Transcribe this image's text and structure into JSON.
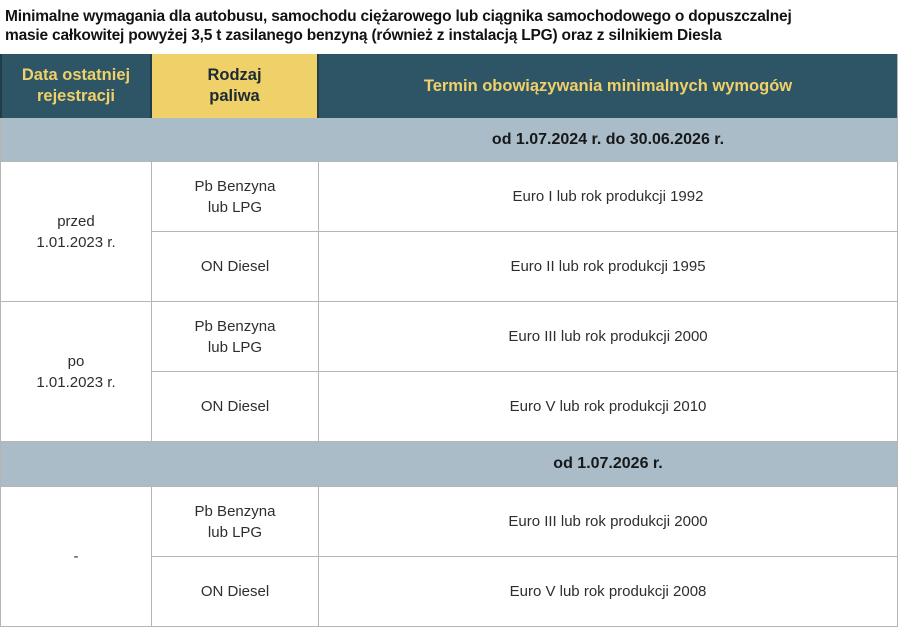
{
  "title": "Minimalne wymagania dla autobusu, samochodu ciężarowego lub ciągnika samochodowego o dopuszczalnej\nmasie całkowitej powyżej 3,5 t zasilanego benzyną (również z instalacją LPG) oraz z silnikiem Diesla",
  "colors": {
    "teal": "#2E5566",
    "yellow": "#F0D069",
    "yellow-text": "#1C2B33",
    "band": "#A9BCC7",
    "border": "#B5B5B5",
    "divider": "#1F3E4A",
    "text": "#2E2E2E"
  },
  "table": {
    "columns": [
      "Data ostatniej\nrejestracji",
      "Rodzaj\npaliwa",
      "Termin obowiązywania minimalnych wymogów"
    ],
    "sections": [
      {
        "period": "od 1.07.2024 r. do 30.06.2026 r.",
        "groups": [
          {
            "registration": "przed\n1.01.2023 r.",
            "rows": [
              {
                "fuel": "Pb Benzyna\nlub LPG",
                "requirement": "Euro I lub rok produkcji 1992"
              },
              {
                "fuel": "ON Diesel",
                "requirement": "Euro II lub rok produkcji 1995"
              }
            ]
          },
          {
            "registration": "po\n1.01.2023 r.",
            "rows": [
              {
                "fuel": "Pb Benzyna\nlub LPG",
                "requirement": "Euro III lub rok produkcji 2000"
              },
              {
                "fuel": "ON Diesel",
                "requirement": "Euro V lub rok produkcji 2010"
              }
            ]
          }
        ]
      },
      {
        "period": "od 1.07.2026 r.",
        "groups": [
          {
            "registration": "-",
            "rows": [
              {
                "fuel": "Pb Benzyna\nlub LPG",
                "requirement": "Euro III lub rok produkcji 2000"
              },
              {
                "fuel": "ON Diesel",
                "requirement": "Euro V lub rok produkcji 2008"
              }
            ]
          }
        ]
      }
    ]
  }
}
